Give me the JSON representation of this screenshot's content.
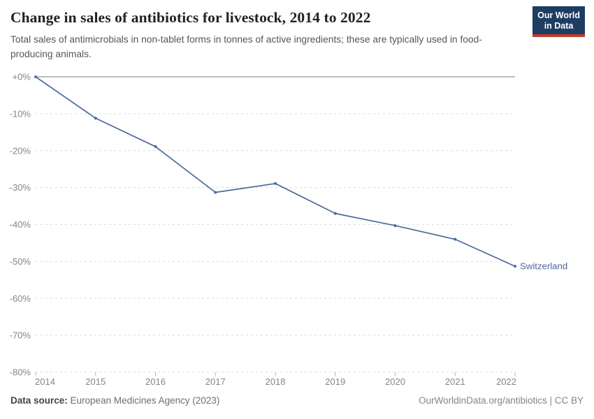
{
  "header": {
    "title": "Change in sales of antibiotics for livestock, 2014 to 2022",
    "subtitle": "Total sales of antimicrobials in non-tablet forms in tonnes of active ingredients; these are typically used in food-producing animals.",
    "logo": {
      "line1": "Our World",
      "line2": "in Data"
    }
  },
  "chart_data": {
    "type": "line",
    "title": "Change in sales of antibiotics for livestock, 2014 to 2022",
    "x": [
      "2014",
      "2015",
      "2016",
      "2017",
      "2018",
      "2019",
      "2020",
      "2021",
      "2022"
    ],
    "series": [
      {
        "name": "Switzerland",
        "values": [
          0,
          -11.2,
          -18.9,
          -31.3,
          -28.9,
          -37.0,
          -40.3,
          -44.0,
          -51.3
        ]
      }
    ],
    "xlabel": "",
    "ylabel": "",
    "ylim": [
      -80,
      0
    ],
    "y_axis": {
      "ticks": [
        {
          "label": "+0%",
          "value": 0
        },
        {
          "label": "-10%",
          "value": -10
        },
        {
          "label": "-20%",
          "value": -20
        },
        {
          "label": "-30%",
          "value": -30
        },
        {
          "label": "-40%",
          "value": -40
        },
        {
          "label": "-50%",
          "value": -50
        },
        {
          "label": "-60%",
          "value": -60
        },
        {
          "label": "-70%",
          "value": -70
        },
        {
          "label": "-80%",
          "value": -80
        }
      ]
    },
    "grid": "horizontal-dashed",
    "legend_position": "end-of-line-label",
    "end_label": "Switzerland"
  },
  "footer": {
    "source_label": "Data source:",
    "source_text": " European Medicines Agency (2023)",
    "attribution": "OurWorldinData.org/antibiotics | CC BY"
  },
  "colors": {
    "line": "#4C6A9C",
    "zero_line": "#a8a8a8",
    "gridline": "#dcdcdc",
    "tick_mark": "#b5b5b5",
    "axis_text": "#858585",
    "logo_bg": "#1d3d63",
    "logo_accent": "#c0392b"
  }
}
